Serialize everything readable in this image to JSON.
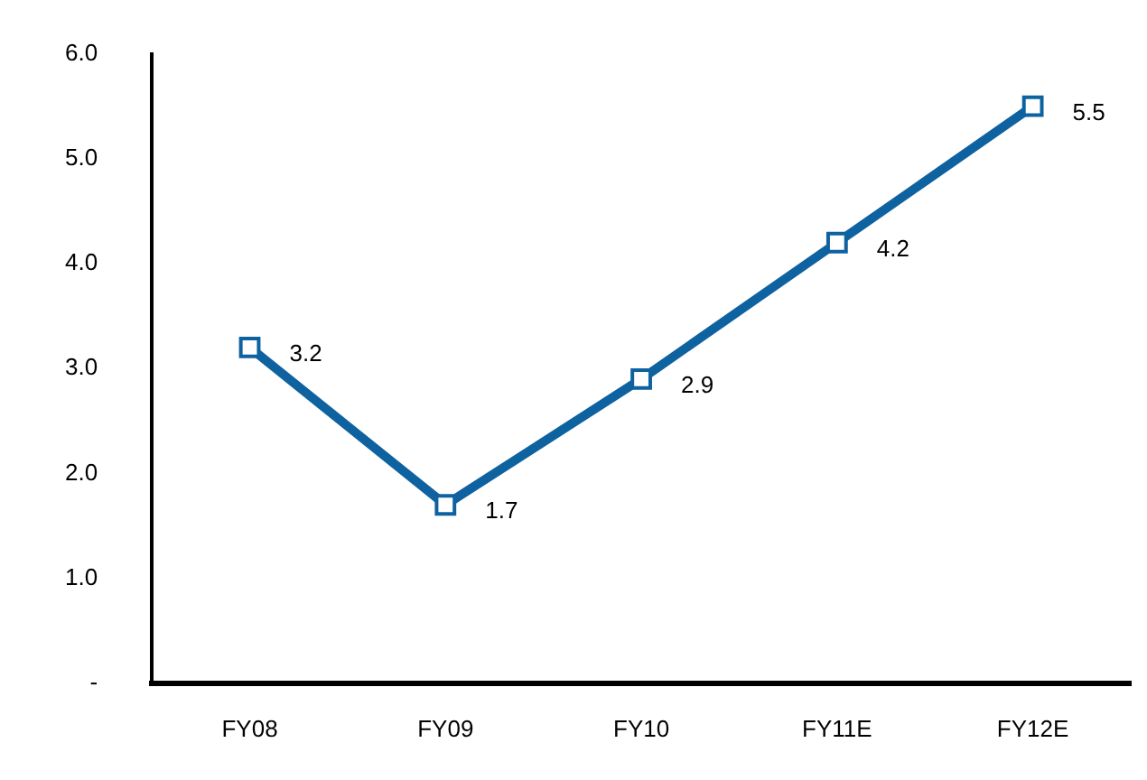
{
  "chart_data": {
    "type": "line",
    "categories": [
      "FY08",
      "FY09",
      "FY10",
      "FY11E",
      "FY12E"
    ],
    "series": [
      {
        "color": "#0f62a0",
        "values": [
          3.2,
          1.7,
          2.9,
          4.2,
          5.5
        ]
      }
    ],
    "ylim": [
      0,
      6
    ],
    "yticks": [
      {
        "value": 0,
        "label": "-"
      },
      {
        "value": 1,
        "label": "1.0"
      },
      {
        "value": 2,
        "label": "2.0"
      },
      {
        "value": 3,
        "label": "3.0"
      },
      {
        "value": 4,
        "label": "4.0"
      },
      {
        "value": 5,
        "label": "5.0"
      },
      {
        "value": 6,
        "label": "6.0"
      }
    ],
    "grid": false,
    "legend": false,
    "marker": "square",
    "line_style": "solid",
    "data_labels": true
  }
}
